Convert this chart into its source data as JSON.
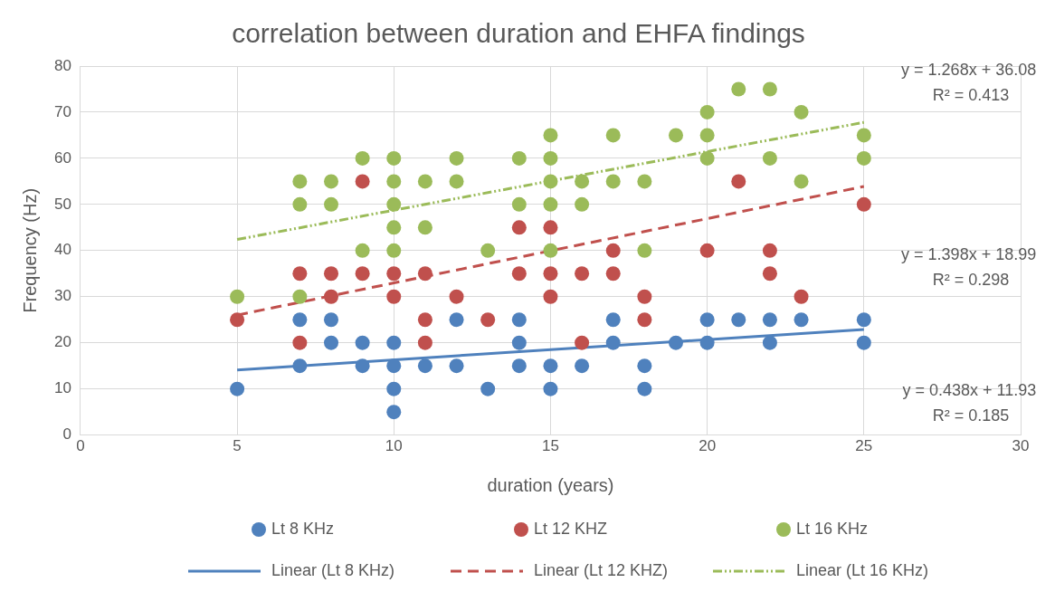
{
  "chart_data": {
    "type": "scatter",
    "title": "correlation between duration and EHFA findings",
    "xlabel": "duration (years)",
    "ylabel": "Frequency (Hz)",
    "xlim": [
      0,
      30
    ],
    "xticks": [
      0,
      5,
      10,
      15,
      20,
      25,
      30
    ],
    "ylim": [
      0,
      80
    ],
    "yticks": [
      0,
      10,
      20,
      30,
      40,
      50,
      60,
      70,
      80
    ],
    "grid": true,
    "legend": "bottom",
    "marker": "circle",
    "series": [
      {
        "name": "Lt 8 KHz",
        "color": "#4f81bd",
        "x": [
          5,
          7,
          7,
          8,
          8,
          9,
          9,
          10,
          10,
          10,
          10,
          11,
          12,
          12,
          13,
          14,
          14,
          14,
          15,
          15,
          16,
          17,
          17,
          18,
          18,
          19,
          20,
          20,
          21,
          22,
          22,
          23,
          25,
          25
        ],
        "values": [
          10,
          25,
          15,
          25,
          20,
          20,
          15,
          20,
          15,
          10,
          5,
          15,
          25,
          15,
          10,
          25,
          20,
          15,
          15,
          10,
          15,
          25,
          20,
          15,
          10,
          20,
          25,
          20,
          25,
          25,
          20,
          25,
          25,
          20
        ]
      },
      {
        "name": "Lt 12 KHZ",
        "color": "#c0504d",
        "x": [
          5,
          7,
          7,
          8,
          8,
          9,
          9,
          10,
          10,
          11,
          11,
          11,
          12,
          13,
          14,
          14,
          15,
          15,
          15,
          16,
          16,
          17,
          17,
          18,
          18,
          20,
          21,
          22,
          22,
          23,
          25
        ],
        "values": [
          25,
          35,
          20,
          35,
          30,
          55,
          35,
          35,
          30,
          35,
          25,
          20,
          30,
          25,
          45,
          35,
          45,
          35,
          30,
          35,
          20,
          40,
          35,
          30,
          25,
          40,
          55,
          40,
          35,
          30,
          50
        ]
      },
      {
        "name": "Lt 16 KHz",
        "color": "#9bbb59",
        "x": [
          5,
          7,
          7,
          7,
          8,
          8,
          9,
          9,
          10,
          10,
          10,
          10,
          10,
          11,
          11,
          12,
          12,
          13,
          14,
          14,
          15,
          15,
          15,
          15,
          15,
          16,
          16,
          17,
          17,
          18,
          18,
          19,
          20,
          20,
          20,
          21,
          22,
          22,
          23,
          23,
          25,
          25
        ],
        "values": [
          30,
          55,
          50,
          30,
          55,
          50,
          60,
          40,
          60,
          55,
          50,
          45,
          40,
          55,
          45,
          60,
          55,
          40,
          60,
          50,
          65,
          60,
          55,
          50,
          40,
          55,
          50,
          65,
          55,
          55,
          40,
          65,
          70,
          65,
          60,
          75,
          75,
          60,
          70,
          55,
          65,
          60
        ]
      },
      {
        "name": "Linear (Lt 8 KHz)",
        "type": "line",
        "line_style": "solid",
        "marker": "none",
        "color": "#4f81bd",
        "x": [
          5,
          25
        ],
        "values": [
          14.1,
          22.9
        ]
      },
      {
        "name": "Linear (Lt 12 KHZ)",
        "type": "line",
        "line_style": "dashed",
        "marker": "none",
        "color": "#c0504d",
        "x": [
          5,
          25
        ],
        "values": [
          26.0,
          53.9
        ]
      },
      {
        "name": "Linear (Lt 16 KHz)",
        "type": "line",
        "line_style": "dotted",
        "marker": "none",
        "color": "#9bbb59",
        "x": [
          5,
          25
        ],
        "values": [
          42.4,
          67.8
        ]
      }
    ],
    "annotations": [
      "y = 0.438x + 11.93\nR² = 0.185",
      "y = 1.398x + 18.99\nR² = 0.298",
      "y = 1.268x + 36.08\nR² = 0.413"
    ]
  }
}
